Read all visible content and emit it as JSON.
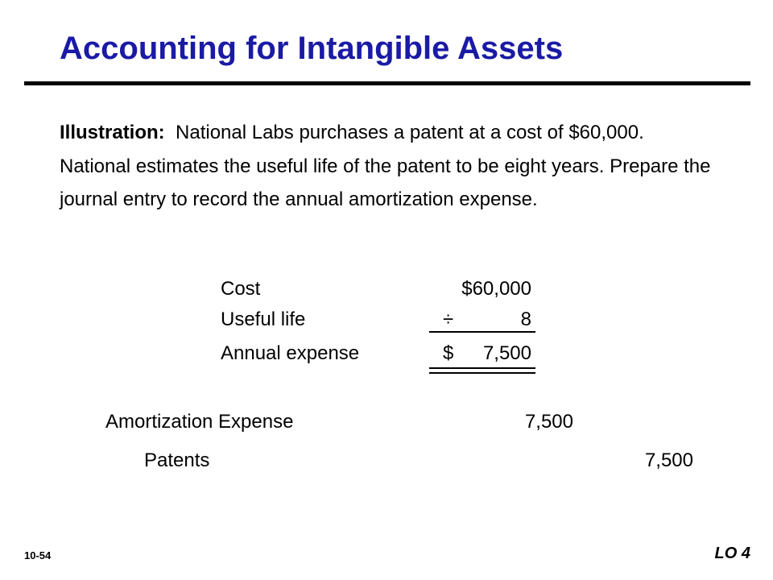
{
  "slide": {
    "title": "Accounting for Intangible Assets",
    "illustration": {
      "lead": "Illustration:",
      "text": "National Labs purchases a patent at a cost of $60,000.  National estimates the useful life of the patent to be eight years.  Prepare the journal entry to record the annual amortization expense."
    },
    "calculation": {
      "rows": [
        {
          "label": "Cost",
          "symbol": "",
          "value": "$60,000"
        },
        {
          "label": "Useful life",
          "symbol": "÷",
          "value": "8"
        },
        {
          "label": "Annual expense",
          "symbol": "$",
          "value": "7,500"
        }
      ]
    },
    "journal_entry": {
      "debit_account": "Amortization Expense",
      "debit_amount": "7,500",
      "credit_account": "Patents",
      "credit_amount": "7,500"
    },
    "slide_number": "10-54",
    "learning_objective": "LO 4"
  }
}
